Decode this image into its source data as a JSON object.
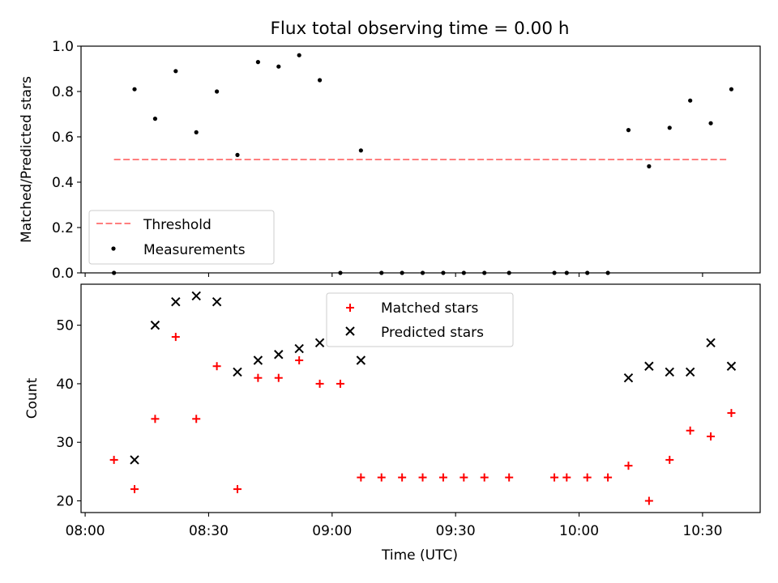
{
  "title": "Flux total observing time = 0.00 h",
  "xlabel": "Time (UTC)",
  "x_tick_labels": [
    "08:00",
    "08:30",
    "09:00",
    "09:30",
    "10:00",
    "10:30"
  ],
  "colors": {
    "threshold": "#ff7f7f",
    "measurements": "#000000",
    "matched": "#ff0000",
    "predicted": "#000000"
  },
  "chart_data": [
    {
      "type": "scatter",
      "ylabel": "Matched/Predicted stars",
      "ylim": [
        0,
        1.0
      ],
      "xlim": [
        "07:59",
        "10:44"
      ],
      "y_tick_labels": [
        "0.0",
        "0.2",
        "0.4",
        "0.6",
        "0.8",
        "1.0"
      ],
      "legend": {
        "placement": "lower-left",
        "entries": [
          "Threshold",
          "Measurements"
        ]
      },
      "series": [
        {
          "name": "Threshold",
          "style": "dashed-line",
          "x": [
            "08:07",
            "10:36"
          ],
          "y": [
            0.5,
            0.5
          ]
        },
        {
          "name": "Measurements",
          "style": "dot",
          "x": [
            "08:07",
            "08:12",
            "08:17",
            "08:22",
            "08:27",
            "08:32",
            "08:37",
            "08:42",
            "08:47",
            "08:52",
            "08:57",
            "09:02",
            "09:07",
            "09:12",
            "09:17",
            "09:22",
            "09:27",
            "09:32",
            "09:37",
            "09:43",
            "09:54",
            "09:57",
            "10:02",
            "10:07",
            "10:12",
            "10:17",
            "10:22",
            "10:27",
            "10:32",
            "10:37"
          ],
          "y": [
            0.0,
            0.81,
            0.68,
            0.89,
            0.62,
            0.8,
            0.52,
            0.93,
            0.91,
            0.96,
            0.85,
            0.0,
            0.54,
            0.0,
            0.0,
            0.0,
            0.0,
            0.0,
            0.0,
            0.0,
            0.0,
            0.0,
            0.0,
            0.0,
            0.63,
            0.47,
            0.64,
            0.76,
            0.66,
            0.81
          ]
        }
      ]
    },
    {
      "type": "scatter",
      "ylabel": "Count",
      "ylim": [
        18,
        57
      ],
      "xlim": [
        "07:59",
        "10:44"
      ],
      "y_tick_labels": [
        "20",
        "30",
        "40",
        "50"
      ],
      "legend": {
        "placement": "top-center",
        "entries": [
          "Matched stars",
          "Predicted stars"
        ]
      },
      "series": [
        {
          "name": "Matched stars",
          "marker": "+",
          "x": [
            "08:07",
            "08:12",
            "08:17",
            "08:22",
            "08:27",
            "08:32",
            "08:37",
            "08:42",
            "08:47",
            "08:52",
            "08:57",
            "09:02",
            "09:07",
            "09:12",
            "09:17",
            "09:22",
            "09:27",
            "09:32",
            "09:37",
            "09:43",
            "09:54",
            "09:57",
            "10:02",
            "10:07",
            "10:12",
            "10:17",
            "10:22",
            "10:27",
            "10:32",
            "10:37"
          ],
          "y": [
            27,
            22,
            34,
            48,
            34,
            43,
            22,
            41,
            41,
            44,
            40,
            40,
            24,
            24,
            24,
            24,
            24,
            24,
            24,
            24,
            24,
            24,
            24,
            24,
            26,
            20,
            27,
            32,
            31,
            35
          ]
        },
        {
          "name": "Predicted stars",
          "marker": "x",
          "x": [
            "08:12",
            "08:17",
            "08:22",
            "08:27",
            "08:32",
            "08:37",
            "08:42",
            "08:47",
            "08:52",
            "08:57",
            "09:07",
            "10:12",
            "10:17",
            "10:22",
            "10:27",
            "10:32",
            "10:37"
          ],
          "y": [
            27,
            50,
            54,
            55,
            54,
            42,
            44,
            45,
            46,
            47,
            44,
            41,
            43,
            42,
            42,
            47,
            43
          ]
        }
      ]
    }
  ]
}
